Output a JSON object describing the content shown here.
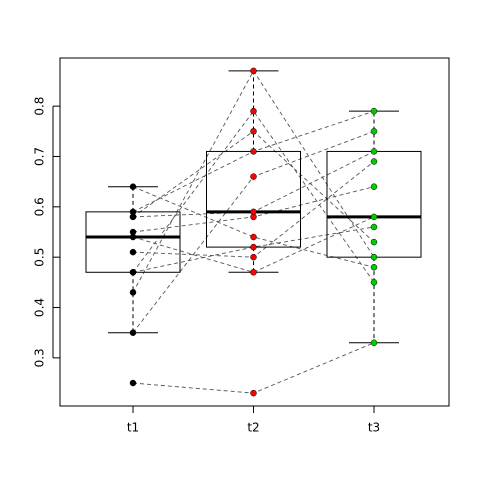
{
  "chart_data": {
    "type": "paired-boxplot",
    "categories": [
      "t1",
      "t2",
      "t3"
    ],
    "groups": [
      {
        "color": "#000000",
        "values": [
          0.25,
          0.35,
          0.43,
          0.47,
          0.64,
          0.59,
          0.58,
          0.55,
          0.54,
          0.51,
          0.47,
          0.58
        ],
        "box": {
          "whisker_low": 0.35,
          "q1": 0.47,
          "median": 0.54,
          "q3": 0.59,
          "whisker_high": 0.64
        }
      },
      {
        "color": "#ff0000",
        "values": [
          0.23,
          0.66,
          0.87,
          0.79,
          0.54,
          0.71,
          0.75,
          0.58,
          0.47,
          0.5,
          0.52,
          0.59
        ],
        "box": {
          "whisker_low": 0.47,
          "q1": 0.52,
          "median": 0.59,
          "q3": 0.71,
          "whisker_high": 0.87
        }
      },
      {
        "color": "#00cd00",
        "values": [
          0.33,
          0.75,
          0.5,
          0.45,
          0.48,
          0.79,
          0.53,
          0.64,
          0.58,
          0.69,
          0.56,
          0.71
        ],
        "box": {
          "whisker_low": 0.33,
          "q1": 0.5,
          "median": 0.58,
          "q3": 0.71,
          "whisker_high": 0.79
        }
      }
    ],
    "ylim": [
      0.2044,
      0.8956
    ],
    "yticks": [
      0.3,
      0.4,
      0.5,
      0.6,
      0.7,
      0.8
    ]
  }
}
